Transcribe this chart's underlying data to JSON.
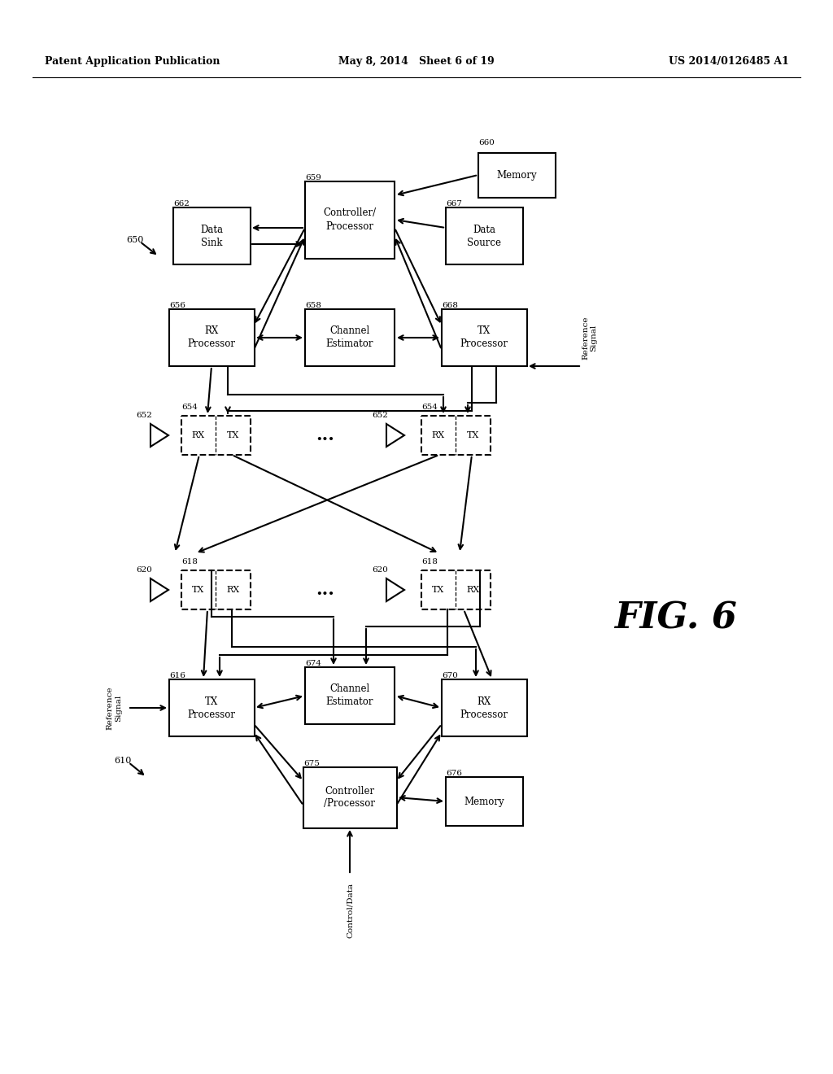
{
  "header_left": "Patent Application Publication",
  "header_mid": "May 8, 2014   Sheet 6 of 19",
  "header_right": "US 2014/0126485 A1",
  "fig_label": "FIG. 6",
  "bg_color": "#ffffff",
  "line_color": "#000000",
  "box_color": "#ffffff",
  "text_color": "#000000"
}
